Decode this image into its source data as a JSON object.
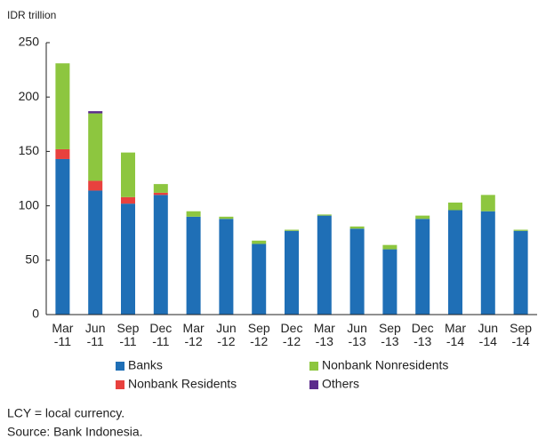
{
  "chart_data": {
    "type": "stacked_bar",
    "y_axis_label": "IDR trillion",
    "categories": [
      "Mar\n-11",
      "Jun\n-11",
      "Sep\n-11",
      "Dec\n-11",
      "Mar\n-12",
      "Jun\n-12",
      "Sep\n-12",
      "Dec\n-12",
      "Mar\n-13",
      "Jun\n-13",
      "Sep\n-13",
      "Dec\n-13",
      "Mar\n-14",
      "Jun\n-14",
      "Sep\n-14"
    ],
    "series": [
      {
        "name": "Banks",
        "color": "#1f6fb6",
        "values": [
          143,
          114,
          102,
          110,
          90,
          88,
          65,
          77,
          91,
          79,
          60,
          88,
          96,
          95,
          77
        ]
      },
      {
        "name": "Nonbank Residents",
        "color": "#e8413e",
        "values": [
          9,
          9,
          6,
          2,
          0,
          0,
          0,
          0,
          0,
          0,
          0,
          0,
          0,
          0,
          0
        ]
      },
      {
        "name": "Nonbank Nonresidents",
        "color": "#8dc63f",
        "values": [
          79,
          62,
          41,
          8,
          5,
          2,
          3,
          1,
          1,
          2,
          4,
          3,
          7,
          15,
          1
        ]
      },
      {
        "name": "Others",
        "color": "#5b2b8c",
        "values": [
          0,
          2,
          0,
          0,
          0,
          0,
          0,
          0,
          0,
          0,
          0,
          0,
          0,
          0,
          0
        ]
      }
    ],
    "ylim": [
      0,
      250
    ],
    "yticks": [
      0,
      50,
      100,
      150,
      200,
      250
    ],
    "notes": [
      "LCY = local currency.",
      "Source: Bank Indonesia."
    ]
  }
}
